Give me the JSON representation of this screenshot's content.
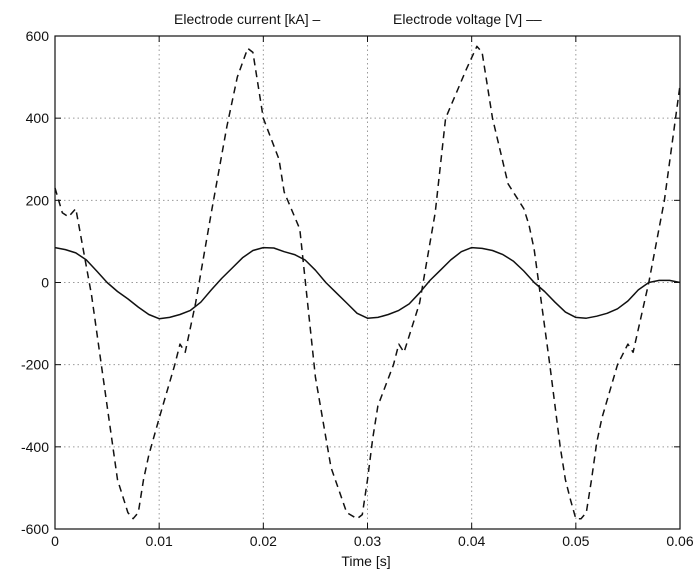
{
  "chart_data": {
    "type": "line",
    "title_left": "Electrode current [kA] –",
    "title_right": "Electrode voltage [V] ––",
    "xlabel": "Time [s]",
    "ylabel": "",
    "xlim": [
      0,
      0.06
    ],
    "ylim": [
      -600,
      600
    ],
    "grid": true,
    "x_ticks": [
      0,
      0.01,
      0.02,
      0.03,
      0.04,
      0.05,
      0.06
    ],
    "x_tick_labels": [
      "0",
      "0.01",
      "0.02",
      "0.03",
      "0.04",
      "0.05",
      "0.06"
    ],
    "y_ticks": [
      -600,
      -400,
      -200,
      0,
      200,
      400,
      600
    ],
    "y_tick_labels": [
      "-600",
      "-400",
      "-200",
      "0",
      "200",
      "400",
      "600"
    ],
    "series": [
      {
        "name": "Electrode current [kA]",
        "style": "solid",
        "color": "#111111",
        "x": [
          0,
          0.001,
          0.002,
          0.003,
          0.004,
          0.005,
          0.006,
          0.007,
          0.008,
          0.009,
          0.01,
          0.011,
          0.012,
          0.013,
          0.014,
          0.015,
          0.016,
          0.017,
          0.018,
          0.019,
          0.02,
          0.021,
          0.022,
          0.023,
          0.024,
          0.025,
          0.026,
          0.027,
          0.028,
          0.029,
          0.03,
          0.031,
          0.032,
          0.033,
          0.034,
          0.035,
          0.036,
          0.037,
          0.038,
          0.039,
          0.04,
          0.041,
          0.042,
          0.043,
          0.044,
          0.045,
          0.046,
          0.047,
          0.048,
          0.049,
          0.05,
          0.051,
          0.052,
          0.053,
          0.054,
          0.055,
          0.056,
          0.057,
          0.058,
          0.059,
          0.06
        ],
        "y": [
          85,
          80,
          72,
          55,
          28,
          0,
          -22,
          -40,
          -60,
          -78,
          -88,
          -85,
          -78,
          -68,
          -48,
          -18,
          10,
          35,
          60,
          78,
          85,
          84,
          75,
          68,
          55,
          30,
          0,
          -25,
          -50,
          -75,
          -87,
          -85,
          -78,
          -68,
          -52,
          -25,
          5,
          30,
          55,
          75,
          85,
          83,
          78,
          68,
          52,
          28,
          0,
          -22,
          -48,
          -72,
          -85,
          -87,
          -82,
          -75,
          -64,
          -45,
          -18,
          0,
          5,
          5,
          0
        ]
      },
      {
        "name": "Electrode voltage [V]",
        "style": "dashed",
        "color": "#111111",
        "x": [
          0,
          0.0007,
          0.0013,
          0.002,
          0.0035,
          0.005,
          0.006,
          0.007,
          0.0075,
          0.008,
          0.0085,
          0.009,
          0.01,
          0.0115,
          0.012,
          0.0125,
          0.0135,
          0.015,
          0.0165,
          0.0175,
          0.0185,
          0.019,
          0.02,
          0.0215,
          0.022,
          0.0235,
          0.025,
          0.0265,
          0.028,
          0.029,
          0.0295,
          0.03,
          0.0305,
          0.031,
          0.0325,
          0.033,
          0.0335,
          0.035,
          0.0365,
          0.0375,
          0.0395,
          0.0405,
          0.041,
          0.042,
          0.0435,
          0.045,
          0.0455,
          0.046,
          0.0475,
          0.0485,
          0.049,
          0.0495,
          0.05,
          0.0505,
          0.051,
          0.0515,
          0.052,
          0.0525,
          0.054,
          0.055,
          0.0555,
          0.057,
          0.0585,
          0.06
        ],
        "y": [
          230,
          170,
          160,
          180,
          -30,
          -300,
          -480,
          -560,
          -575,
          -560,
          -480,
          -420,
          -330,
          -200,
          -150,
          -170,
          -50,
          170,
          380,
          500,
          570,
          560,
          400,
          300,
          220,
          130,
          -230,
          -450,
          -560,
          -575,
          -565,
          -480,
          -380,
          -300,
          -200,
          -150,
          -170,
          -50,
          170,
          400,
          520,
          575,
          560,
          400,
          240,
          180,
          140,
          80,
          -200,
          -400,
          -480,
          -530,
          -575,
          -575,
          -560,
          -480,
          -390,
          -330,
          -200,
          -150,
          -170,
          0,
          200,
          480
        ]
      }
    ]
  }
}
